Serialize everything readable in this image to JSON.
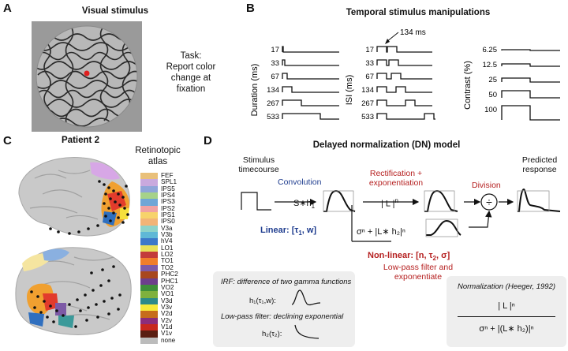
{
  "panelA": {
    "label": "A",
    "title": "Visual stimulus",
    "task_lines": [
      "Task:",
      "Report color",
      "change at",
      "fixation"
    ]
  },
  "panelB": {
    "label": "B",
    "title": "Temporal stimulus manipulations",
    "duration_axis": "Duration (ms)",
    "isi_axis": "ISI (ms)",
    "contrast_axis": "Contrast (%)",
    "duration_ticks": [
      "17",
      "33",
      "67",
      "134",
      "267",
      "533"
    ],
    "isi_ticks": [
      "17",
      "33",
      "67",
      "134",
      "267",
      "533"
    ],
    "contrast_ticks": [
      "6.25",
      "12.5",
      "25",
      "50",
      "100"
    ],
    "isi_annotation": "134 ms"
  },
  "panelC": {
    "label": "C",
    "title": "Patient 2",
    "atlas_title_lines": [
      "Retinotopic",
      "atlas"
    ],
    "atlas": [
      {
        "name": "FEF",
        "color": "#e9c07a"
      },
      {
        "name": "SPL1",
        "color": "#c9a9de"
      },
      {
        "name": "IPS5",
        "color": "#8fa5d9"
      },
      {
        "name": "IPS4",
        "color": "#a6d28a"
      },
      {
        "name": "IPS3",
        "color": "#6fa6d6"
      },
      {
        "name": "IPS2",
        "color": "#f0a2a2"
      },
      {
        "name": "IPS1",
        "color": "#f7d36b"
      },
      {
        "name": "IPS0",
        "color": "#f2b477"
      },
      {
        "name": "V3a",
        "color": "#8ed3c9"
      },
      {
        "name": "V3b",
        "color": "#5fb8d6"
      },
      {
        "name": "hV4",
        "color": "#3c78c9"
      },
      {
        "name": "LO1",
        "color": "#e8e05a"
      },
      {
        "name": "LO2",
        "color": "#c33b3b"
      },
      {
        "name": "TO1",
        "color": "#f07e2a"
      },
      {
        "name": "TO2",
        "color": "#7d5aa6"
      },
      {
        "name": "PHC2",
        "color": "#a8471e"
      },
      {
        "name": "PHC1",
        "color": "#6d3f8c"
      },
      {
        "name": "VO2",
        "color": "#3f8f3a"
      },
      {
        "name": "VO1",
        "color": "#7fb13d"
      },
      {
        "name": "V3d",
        "color": "#2b8a8a"
      },
      {
        "name": "V3v",
        "color": "#f5ea3a"
      },
      {
        "name": "V2d",
        "color": "#c66c1c"
      },
      {
        "name": "V2v",
        "color": "#8c2d7a"
      },
      {
        "name": "V1d",
        "color": "#c8281e"
      },
      {
        "name": "V1v",
        "color": "#5a1e12"
      },
      {
        "name": "none",
        "color": "#bcbcbc"
      }
    ]
  },
  "panelD": {
    "label": "D",
    "title": "Delayed normalization (DN) model",
    "stimulus_label_lines": [
      "Stimulus",
      "timecourse"
    ],
    "convolution_label": "Convolution",
    "convolution_formula": "S∗h",
    "convolution_sub": "1",
    "rectification_lines": [
      "Rectification +",
      "exponentiation"
    ],
    "rectification_formula": "| L |",
    "rectification_exp": "n",
    "division_label": "Division",
    "division_symbol": "÷",
    "predicted_lines": [
      "Predicted",
      "response"
    ],
    "linear_label": "Linear: [τ",
    "linear_sub": "1",
    "linear_end": ", w]",
    "denominator_formula": "σⁿ + |L∗ h₂|ⁿ",
    "nonlinear_label": "Non-linear: [n, τ",
    "nonlinear_sub": "2",
    "nonlinear_end": ", σ]",
    "lowpass_lines": [
      "Low-pass filter and",
      "exponentiate"
    ],
    "irf_title": "IRF: difference of two gamma functions",
    "irf_formula": "h₁(τ₁,w):",
    "lowpass_title": "Low-pass filter: declining exponential",
    "lowpass_formula": "h₂(τ₂):",
    "norm_title": "Normalization (Heeger, 1992)",
    "norm_numerator": "| L |ⁿ",
    "norm_denominator": "σⁿ + |(L∗ h₂)|ⁿ"
  }
}
